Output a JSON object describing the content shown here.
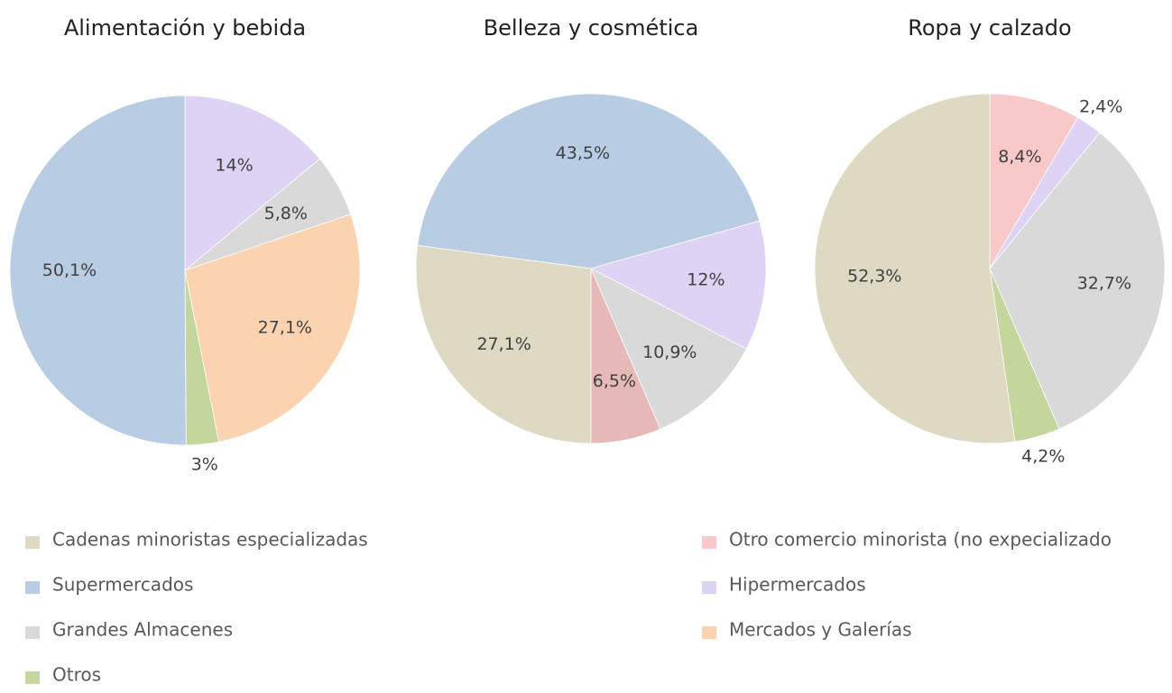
{
  "chart_data": [
    {
      "type": "pie",
      "title": "Alimentación y bebida",
      "startangle": 0,
      "categories": [
        "Hipermercados",
        "Grandes Almacenes",
        "Mercados y Galerías",
        "Otros",
        "Supermercados"
      ],
      "values": [
        14,
        5.8,
        27.1,
        3,
        50.1
      ],
      "value_labels": [
        "14%",
        "5,8%",
        "27,1%",
        "3%",
        "50,1%"
      ],
      "colors": [
        "#ded3f4",
        "#d9d9d9",
        "#fcd3b0",
        "#c3d69b",
        "#b8cce4"
      ]
    },
    {
      "type": "pie",
      "title": "Belleza y cosmética",
      "startangle": 277.6,
      "categories": [
        "Supermercados",
        "Hipermercados",
        "Grandes Almacenes",
        "Otro comercio minorista (no expecializado",
        "Cadenas minoristas especializadas"
      ],
      "values": [
        43.5,
        12,
        10.9,
        6.5,
        27.1
      ],
      "value_labels": [
        "43,5%",
        "12%",
        "10,9%",
        "6,5%",
        "27,1%"
      ],
      "colors": [
        "#b8cce4",
        "#ded3f4",
        "#d9d9d9",
        "#e6b9b8",
        "#ddd9c3"
      ]
    },
    {
      "type": "pie",
      "title": "Ropa y calzado",
      "startangle": 0,
      "categories": [
        "Otro comercio minorista (no expecializado",
        "Hipermercados",
        "Grandes Almacenes",
        "Otros",
        "Cadenas minoristas especializadas"
      ],
      "values": [
        8.4,
        2.4,
        32.7,
        4.2,
        52.3
      ],
      "value_labels": [
        "8,4%",
        "2,4%",
        "32,7%",
        "4,2%",
        "52,3%"
      ],
      "colors": [
        "#f9c9c9",
        "#ded3f4",
        "#d9d9d9",
        "#c3d69b",
        "#ddd9c3"
      ]
    }
  ],
  "legend": {
    "items": [
      {
        "name": "Cadenas minoristas especializadas",
        "color": "#ddd9c3"
      },
      {
        "name": "Supermercados",
        "color": "#b8cce4"
      },
      {
        "name": "Grandes Almacenes",
        "color": "#d9d9d9"
      },
      {
        "name": "Otros",
        "color": "#c3d69b"
      },
      {
        "name": "Otro comercio minorista (no expecializado",
        "color": "#f9c9c9"
      },
      {
        "name": "Hipermercados",
        "color": "#ded3f4"
      },
      {
        "name": "Mercados y Galerías",
        "color": "#fcd3b0"
      }
    ]
  }
}
